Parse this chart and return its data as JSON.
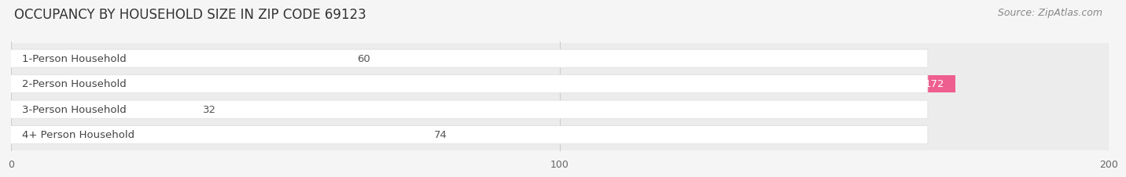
{
  "title": "OCCUPANCY BY HOUSEHOLD SIZE IN ZIP CODE 69123",
  "source": "Source: ZipAtlas.com",
  "categories": [
    "1-Person Household",
    "2-Person Household",
    "3-Person Household",
    "4+ Person Household"
  ],
  "values": [
    60,
    172,
    32,
    74
  ],
  "bar_colors": [
    "#b0b8e8",
    "#ee5f8f",
    "#f5cc95",
    "#eeaa99"
  ],
  "label_colors": [
    "#333333",
    "#ffffff",
    "#333333",
    "#333333"
  ],
  "background_color": "#f5f5f5",
  "row_bg_color": "#ececec",
  "xlim": [
    0,
    200
  ],
  "xticks": [
    0,
    100,
    200
  ],
  "title_fontsize": 12,
  "source_fontsize": 9,
  "label_fontsize": 9.5,
  "value_fontsize": 9.5,
  "bar_height": 0.68
}
